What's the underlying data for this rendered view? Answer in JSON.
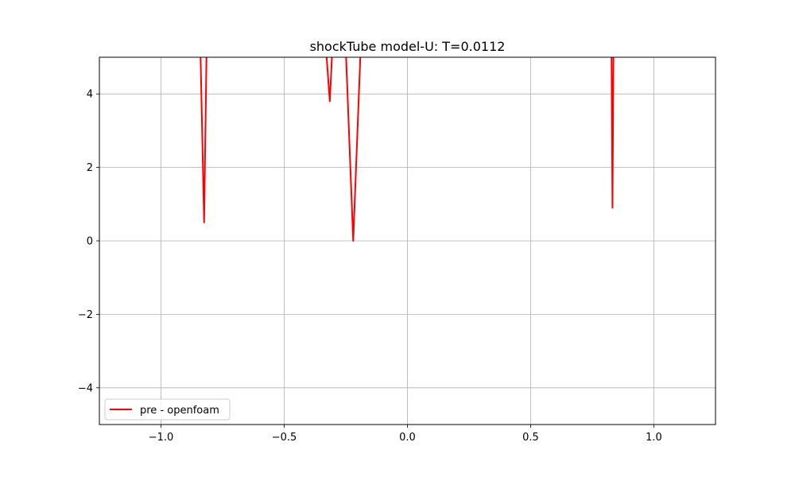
{
  "chart_data": {
    "type": "line",
    "title": "shockTube model-U: T=0.0112",
    "xlabel": "",
    "ylabel": "",
    "xlim": [
      -1.25,
      1.25
    ],
    "ylim": [
      -5,
      5
    ],
    "x_ticks": [
      -1.0,
      -0.5,
      0.0,
      0.5,
      1.0
    ],
    "x_tick_labels": [
      "−1.0",
      "−0.5",
      "0.0",
      "0.5",
      "1.0"
    ],
    "y_ticks": [
      -4,
      -2,
      0,
      2,
      4
    ],
    "y_tick_labels": [
      "−4",
      "−2",
      "0",
      "2",
      "4"
    ],
    "grid": true,
    "legend_position": "lower-left",
    "series": [
      {
        "name": "pre - openfoam",
        "color": "#ff0000",
        "segments": [
          [
            [
              -0.84,
              5.2
            ],
            [
              -0.825,
              0.5
            ],
            [
              -0.815,
              5.2
            ]
          ],
          [
            [
              -0.33,
              5.2
            ],
            [
              -0.315,
              3.8
            ],
            [
              -0.305,
              5.2
            ]
          ],
          [
            [
              -0.25,
              5.2
            ],
            [
              -0.22,
              0.0
            ],
            [
              -0.19,
              5.2
            ]
          ],
          [
            [
              0.828,
              5.2
            ],
            [
              0.832,
              0.9
            ],
            [
              0.836,
              5.2
            ]
          ]
        ]
      }
    ]
  }
}
